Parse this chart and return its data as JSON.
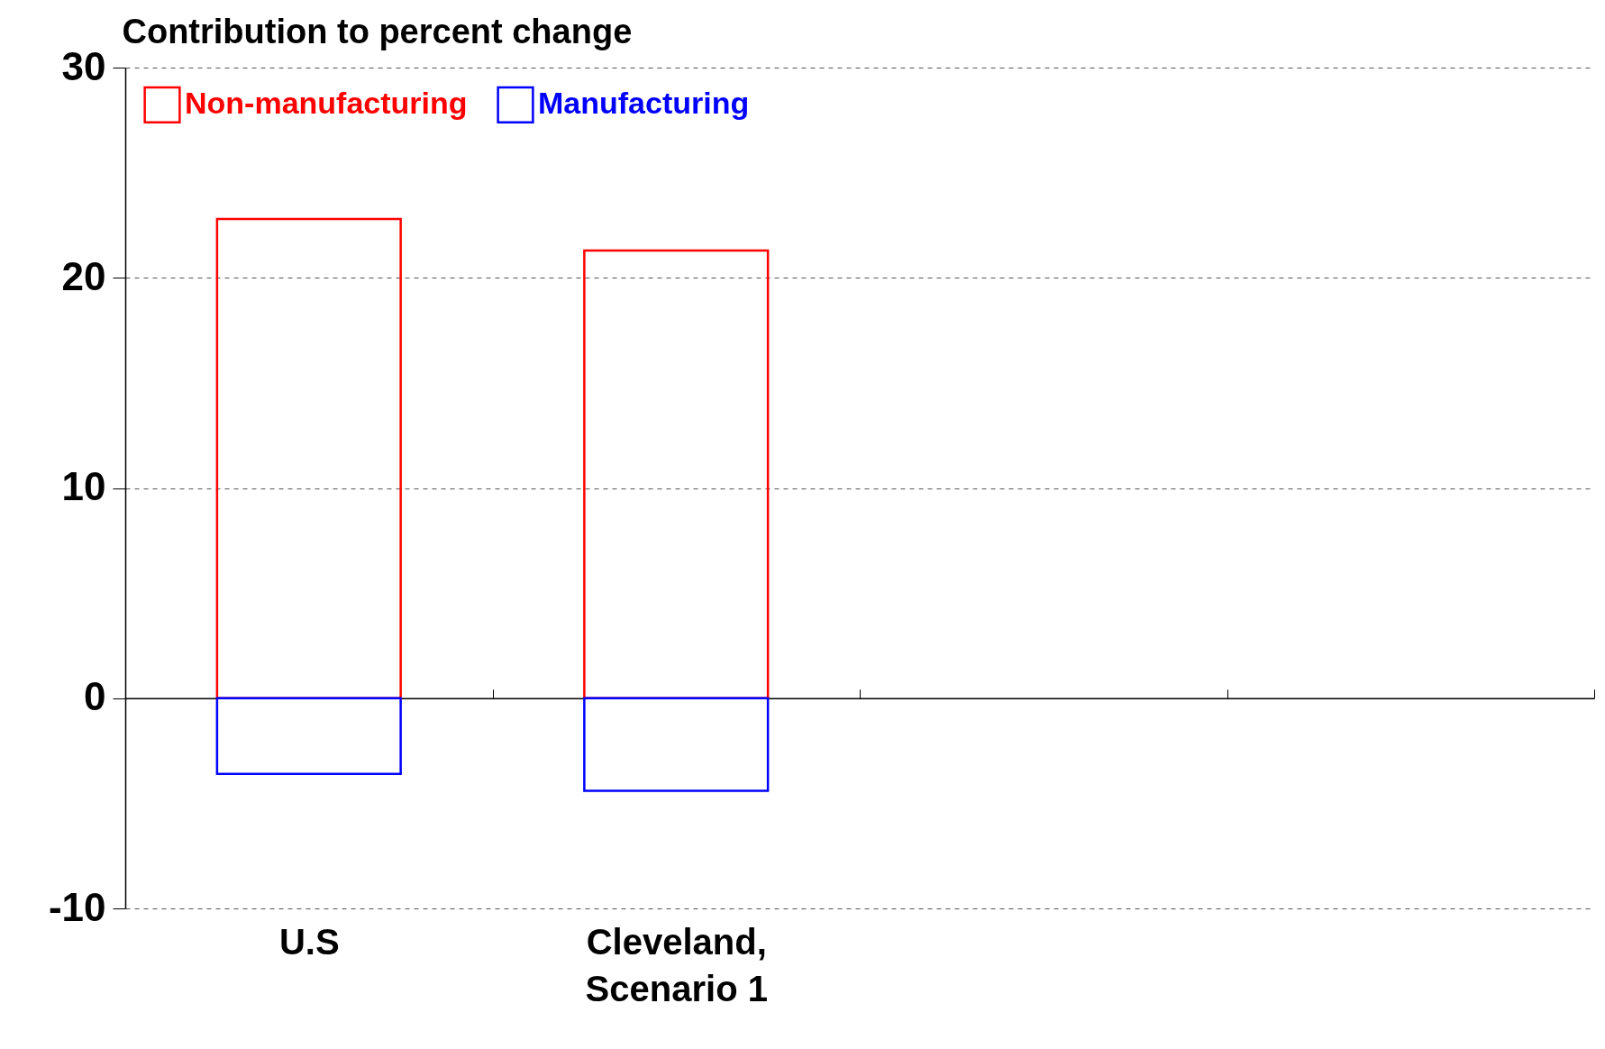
{
  "chart_data": {
    "type": "bar",
    "ylabel": "Contribution to percent change",
    "categories": [
      "U.S",
      "Cleveland, Scenario 1",
      null,
      null
    ],
    "series": [
      {
        "name": "Non-manufacturing",
        "color": "#ff0000",
        "values": [
          22.8,
          21.3,
          null,
          null
        ]
      },
      {
        "name": "Manufacturing",
        "color": "#0000ff",
        "values": [
          -3.6,
          -4.4,
          null,
          null
        ]
      }
    ],
    "stacked": true,
    "ylim": [
      -10,
      30
    ],
    "yticks": [
      -10,
      0,
      10,
      20,
      30
    ],
    "grid": "y",
    "legend": "top left"
  }
}
